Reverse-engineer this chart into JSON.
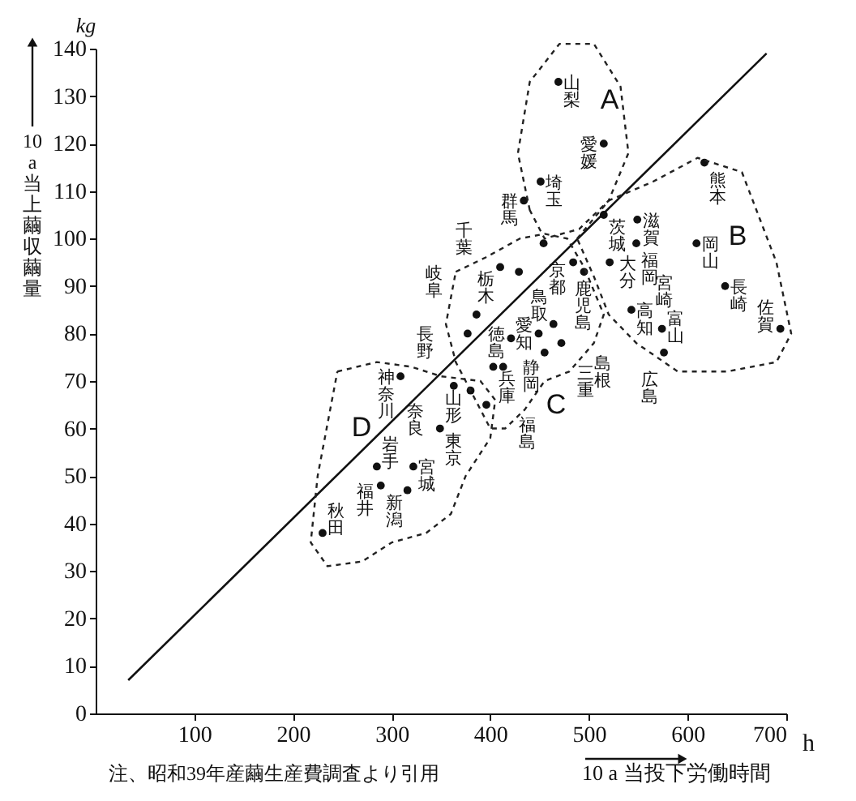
{
  "chart_data": {
    "type": "scatter",
    "xlabel": "10 a 当投下労働時間",
    "ylabel": "10 a 当上繭収繭量",
    "xlim": [
      0,
      700
    ],
    "ylim": [
      0,
      140
    ],
    "xticks": [
      100,
      200,
      300,
      400,
      500,
      600,
      700
    ],
    "yticks": [
      0,
      10,
      20,
      30,
      40,
      50,
      60,
      70,
      80,
      90,
      100,
      110,
      120,
      130,
      140
    ],
    "series": [
      {
        "type": "scatter",
        "marker": "circle",
        "color": "#111111",
        "x": [
          469,
          515,
          451,
          434,
          454,
          515,
          484,
          549,
          617,
          548,
          609,
          521,
          495,
          638,
          694,
          543,
          574,
          576,
          464,
          472,
          410,
          429,
          386,
          377,
          403,
          413,
          421,
          449,
          455,
          363,
          380,
          396,
          349,
          309,
          322,
          285,
          289,
          316,
          230
        ],
        "values": [
          133,
          120,
          112,
          108,
          99,
          105,
          95,
          104,
          116,
          99,
          99,
          95,
          93,
          90,
          81,
          85,
          81,
          76,
          82,
          78,
          94,
          93,
          84,
          80,
          73,
          73,
          79,
          80,
          76,
          69,
          68,
          65,
          60,
          71,
          52,
          52,
          48,
          47,
          38
        ]
      },
      {
        "type": "line",
        "color": "#111111",
        "x": [
          33,
          680
        ],
        "values": [
          7,
          139
        ]
      }
    ],
    "annotations": [
      "kg",
      "h",
      "注、昭和39年産繭生産費調査より引用",
      "A",
      "B",
      "C",
      "D",
      {
        "text": "山梨",
        "x": 469,
        "y": 133
      },
      {
        "text": "愛媛",
        "x": 515,
        "y": 120
      },
      {
        "text": "埼玉",
        "x": 451,
        "y": 112
      },
      {
        "text": "群馬",
        "x": 434,
        "y": 108
      },
      {
        "text": "京都",
        "x": 454,
        "y": 99
      },
      {
        "text": "茨城",
        "x": 515,
        "y": 105
      },
      {
        "text": "大分",
        "x": 484,
        "y": 95
      },
      {
        "text": "滋賀",
        "x": 549,
        "y": 104
      },
      {
        "text": "熊本",
        "x": 617,
        "y": 116
      },
      {
        "text": "福岡",
        "x": 548,
        "y": 99
      },
      {
        "text": "岡山",
        "x": 609,
        "y": 99
      },
      {
        "text": "宮崎",
        "x": 521,
        "y": 95
      },
      {
        "text": "鹿児島",
        "x": 495,
        "y": 93
      },
      {
        "text": "長崎",
        "x": 638,
        "y": 90
      },
      {
        "text": "佐賀",
        "x": 694,
        "y": 81
      },
      {
        "text": "高知",
        "x": 543,
        "y": 85
      },
      {
        "text": "富山",
        "x": 574,
        "y": 81
      },
      {
        "text": "広島",
        "x": 576,
        "y": 76
      },
      {
        "text": "愛知",
        "x": 464,
        "y": 82
      },
      {
        "text": "島根",
        "x": 472,
        "y": 78
      },
      {
        "text": "栃木",
        "x": 410,
        "y": 94
      },
      {
        "text": "千葉",
        "x": 429,
        "y": 93
      },
      {
        "text": "岐阜",
        "x": 386,
        "y": 84
      },
      {
        "text": "長野",
        "x": 377,
        "y": 80
      },
      {
        "text": "兵庫",
        "x": 403,
        "y": 73
      },
      {
        "text": "静岡",
        "x": 413,
        "y": 73
      },
      {
        "text": "鳥取",
        "x": 421,
        "y": 79
      },
      {
        "text": "徳島",
        "x": 449,
        "y": 80
      },
      {
        "text": "三重",
        "x": 455,
        "y": 76
      },
      {
        "text": "山形",
        "x": 363,
        "y": 69
      },
      {
        "text": "奈良",
        "x": 380,
        "y": 68
      },
      {
        "text": "福島",
        "x": 396,
        "y": 65
      },
      {
        "text": "東京",
        "x": 349,
        "y": 60
      },
      {
        "text": "神奈川",
        "x": 309,
        "y": 71
      },
      {
        "text": "宮城",
        "x": 322,
        "y": 52
      },
      {
        "text": "岩手",
        "x": 285,
        "y": 52
      },
      {
        "text": "新潟",
        "x": 289,
        "y": 48
      },
      {
        "text": "福井",
        "x": 316,
        "y": 47
      },
      {
        "text": "秋田",
        "x": 230,
        "y": 38
      }
    ]
  }
}
